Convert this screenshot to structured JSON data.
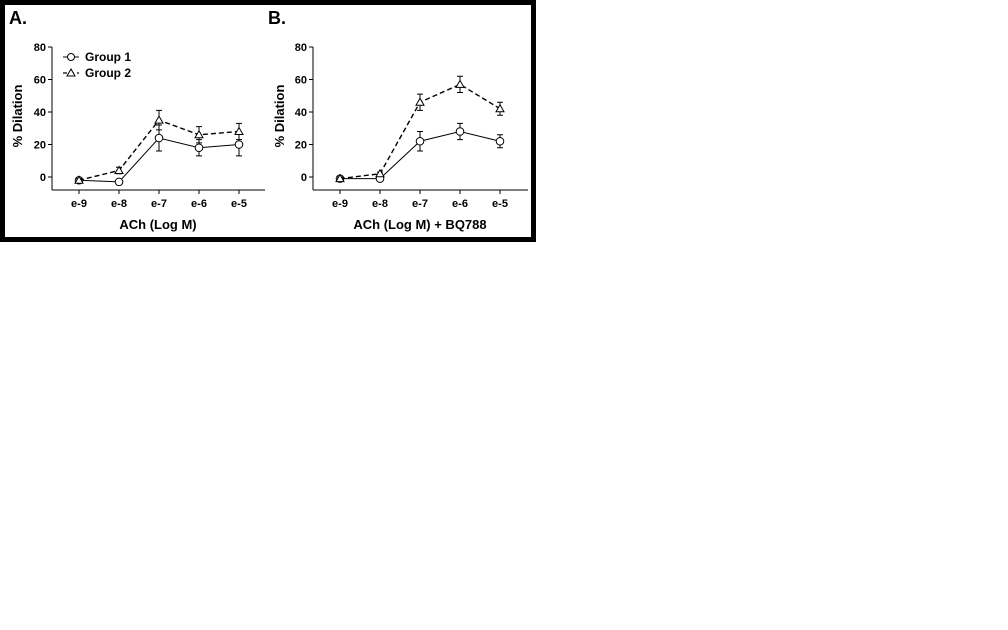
{
  "chart_data": [
    {
      "type": "line",
      "panel": "A.",
      "title": "",
      "xlabel": "ACh (Log M)",
      "ylabel": "% Dilation",
      "categories": [
        "e-9",
        "e-8",
        "e-7",
        "e-6",
        "e-5"
      ],
      "ylim": [
        -8,
        80
      ],
      "yticks": [
        0,
        20,
        40,
        60,
        80
      ],
      "grid": false,
      "legend": "top-left",
      "series": [
        {
          "name": "Group 1",
          "marker": "circle",
          "line": "solid",
          "values": [
            -2,
            -3,
            24,
            18,
            20
          ],
          "errors": [
            1,
            1,
            8,
            5,
            7
          ]
        },
        {
          "name": "Group 2",
          "marker": "triangle",
          "line": "dashed",
          "values": [
            -2,
            4,
            35,
            26,
            28
          ],
          "errors": [
            1,
            2,
            6,
            5,
            5
          ]
        }
      ]
    },
    {
      "type": "line",
      "panel": "B.",
      "title": "",
      "xlabel": "ACh (Log M) + BQ788",
      "ylabel": "% Dilation",
      "categories": [
        "e-9",
        "e-8",
        "e-7",
        "e-6",
        "e-5"
      ],
      "ylim": [
        -8,
        80
      ],
      "yticks": [
        0,
        20,
        40,
        60,
        80
      ],
      "grid": false,
      "series": [
        {
          "name": "Group 1",
          "marker": "circle",
          "line": "solid",
          "values": [
            -1,
            -1,
            22,
            28,
            22
          ],
          "errors": [
            1,
            1,
            6,
            5,
            4
          ]
        },
        {
          "name": "Group 2",
          "marker": "triangle",
          "line": "dashed",
          "values": [
            -1,
            2,
            46,
            57,
            42
          ],
          "errors": [
            1,
            1,
            5,
            5,
            4
          ]
        }
      ]
    }
  ]
}
